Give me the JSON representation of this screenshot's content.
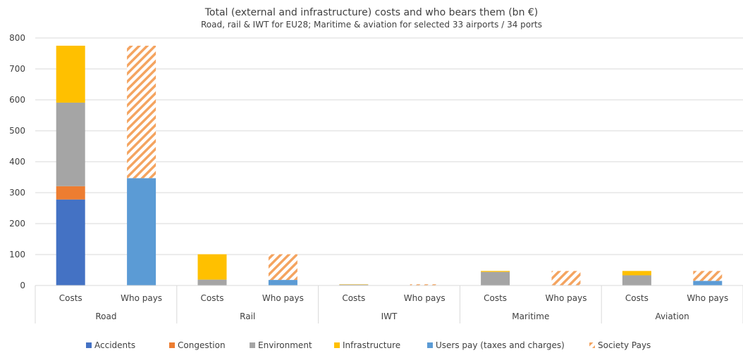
{
  "chart_data": {
    "type": "bar",
    "stacked": true,
    "title": "Total (external and infrastructure) costs and who bears them (bn €)",
    "subtitle": "Road, rail & IWT for EU28; Maritime & aviation for selected 33 airports / 34 ports",
    "ylim": [
      0,
      800
    ],
    "yticks": [
      0,
      100,
      200,
      300,
      400,
      500,
      600,
      700,
      800
    ],
    "grid": true,
    "legend_position": "bottom",
    "groups": [
      "Road",
      "Rail",
      "IWT",
      "Maritime",
      "Aviation"
    ],
    "sub_categories": [
      "Costs",
      "Who pays"
    ],
    "categories": [
      "Road Costs",
      "Road Who pays",
      "Rail Costs",
      "Rail Who pays",
      "IWT Costs",
      "IWT Who pays",
      "Maritime Costs",
      "Maritime Who pays",
      "Aviation Costs",
      "Aviation Who pays"
    ],
    "series": [
      {
        "name": "Accidents",
        "color": "#4472C4",
        "pattern": "solid",
        "values": [
          278,
          0,
          0,
          0,
          0,
          0,
          0,
          0,
          0,
          0
        ]
      },
      {
        "name": "Congestion",
        "color": "#ED7D31",
        "pattern": "solid",
        "values": [
          43,
          0,
          1,
          0,
          0,
          0,
          0,
          0,
          0,
          0
        ]
      },
      {
        "name": "Environment",
        "color": "#A5A5A5",
        "pattern": "solid",
        "values": [
          270,
          0,
          18,
          0,
          3,
          0,
          44,
          0,
          33,
          0
        ]
      },
      {
        "name": "Infrastructure",
        "color": "#FFC000",
        "pattern": "solid",
        "values": [
          184,
          0,
          82,
          0,
          1,
          0,
          3,
          0,
          14,
          0
        ]
      },
      {
        "name": "Users pay (taxes and charges)",
        "color": "#5B9BD5",
        "pattern": "solid",
        "values": [
          0,
          347,
          0,
          18,
          0,
          0,
          0,
          0,
          0,
          15
        ]
      },
      {
        "name": "Society Pays",
        "color": "#F4A460",
        "pattern": "hatch",
        "values": [
          0,
          428,
          0,
          83,
          0,
          4,
          0,
          47,
          0,
          32
        ]
      }
    ]
  }
}
